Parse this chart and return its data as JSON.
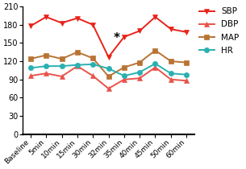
{
  "x_labels": [
    "Baseline",
    "5min",
    "10min",
    "15min",
    "30min",
    "32min",
    "35min",
    "40min",
    "45min",
    "50min",
    "60min"
  ],
  "SBP": [
    178,
    193,
    183,
    191,
    180,
    127,
    160,
    170,
    193,
    173,
    168
  ],
  "DBP": [
    96,
    100,
    95,
    112,
    96,
    75,
    90,
    92,
    110,
    90,
    88
  ],
  "MAP": [
    124,
    130,
    124,
    135,
    125,
    95,
    110,
    118,
    138,
    120,
    118
  ],
  "HR": [
    109,
    112,
    112,
    114,
    115,
    108,
    96,
    102,
    116,
    100,
    98
  ],
  "SBP_color": "#e8231a",
  "DBP_color": "#e8534a",
  "MAP_color": "#b87333",
  "HR_color": "#2ab0b0",
  "annotation_idx": 6,
  "annotation_text": "*",
  "bg_color": "#ffffff",
  "ylim": [
    0,
    210
  ],
  "yticks": [
    0,
    30,
    60,
    90,
    120,
    150,
    180,
    210
  ]
}
